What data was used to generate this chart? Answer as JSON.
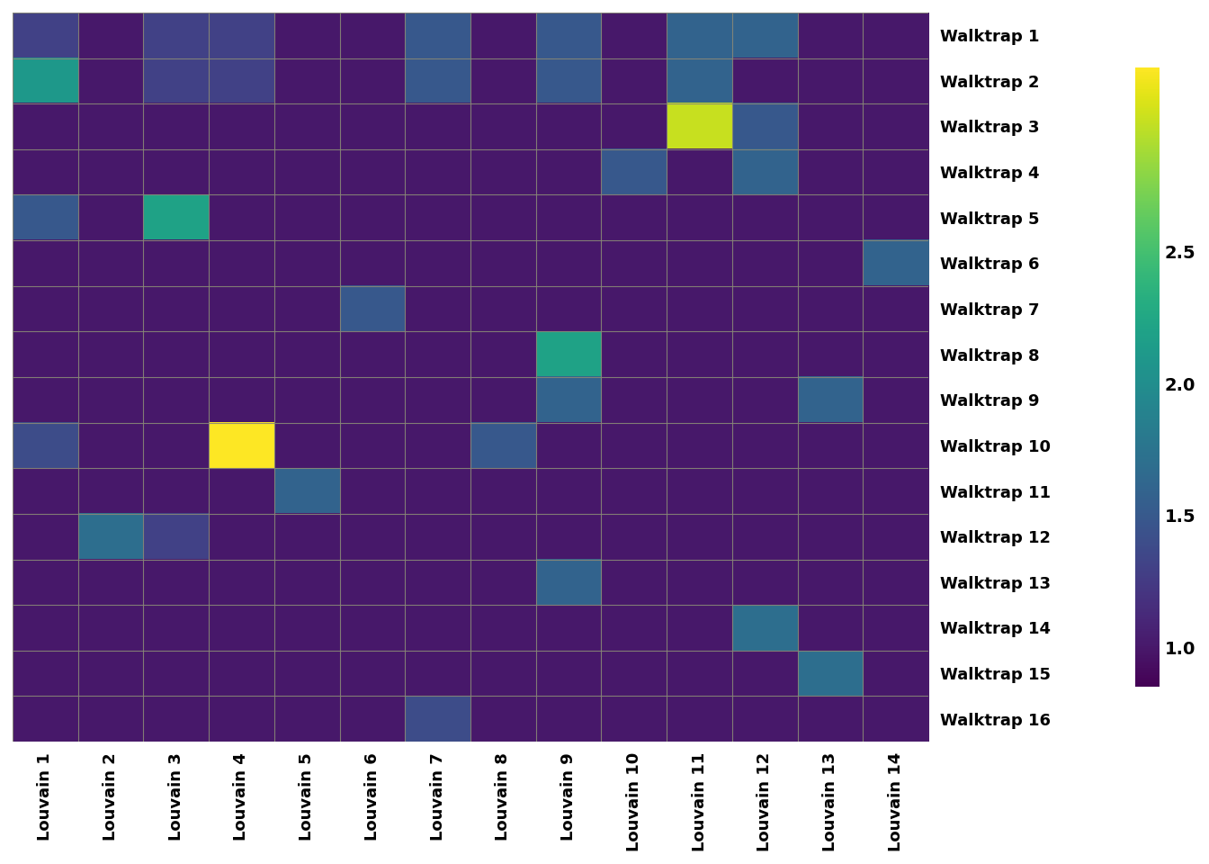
{
  "matrix": [
    [
      1.3,
      1.0,
      1.3,
      1.3,
      1.0,
      1.0,
      1.5,
      1.0,
      1.5,
      1.0,
      1.6,
      1.6,
      1.0,
      1.0
    ],
    [
      2.1,
      1.0,
      1.3,
      1.3,
      1.0,
      1.0,
      1.5,
      1.0,
      1.5,
      1.0,
      1.6,
      1.0,
      1.0,
      1.0
    ],
    [
      1.0,
      1.0,
      1.0,
      1.0,
      1.0,
      1.0,
      1.0,
      1.0,
      1.0,
      1.0,
      3.0,
      1.5,
      1.0,
      1.0
    ],
    [
      1.0,
      1.0,
      1.0,
      1.0,
      1.0,
      1.0,
      1.0,
      1.0,
      1.0,
      1.5,
      1.0,
      1.6,
      1.0,
      1.0
    ],
    [
      1.5,
      1.0,
      2.2,
      1.0,
      1.0,
      1.0,
      1.0,
      1.0,
      1.0,
      1.0,
      1.0,
      1.0,
      1.0,
      1.0
    ],
    [
      1.0,
      1.0,
      1.0,
      1.0,
      1.0,
      1.0,
      1.0,
      1.0,
      1.0,
      1.0,
      1.0,
      1.0,
      1.0,
      1.6
    ],
    [
      1.0,
      1.0,
      1.0,
      1.0,
      1.0,
      1.5,
      1.0,
      1.0,
      1.0,
      1.0,
      1.0,
      1.0,
      1.0,
      1.0
    ],
    [
      1.0,
      1.0,
      1.0,
      1.0,
      1.0,
      1.0,
      1.0,
      1.0,
      2.2,
      1.0,
      1.0,
      1.0,
      1.0,
      1.0
    ],
    [
      1.0,
      1.0,
      1.0,
      1.0,
      1.0,
      1.0,
      1.0,
      1.0,
      1.6,
      1.0,
      1.0,
      1.0,
      1.6,
      1.0
    ],
    [
      1.4,
      1.0,
      1.0,
      3.2,
      1.0,
      1.0,
      1.0,
      1.5,
      1.0,
      1.0,
      1.0,
      1.0,
      1.0,
      1.0
    ],
    [
      1.0,
      1.0,
      1.0,
      1.0,
      1.6,
      1.0,
      1.0,
      1.0,
      1.0,
      1.0,
      1.0,
      1.0,
      1.0,
      1.0
    ],
    [
      1.0,
      1.7,
      1.3,
      1.0,
      1.0,
      1.0,
      1.0,
      1.0,
      1.0,
      1.0,
      1.0,
      1.0,
      1.0,
      1.0
    ],
    [
      1.0,
      1.0,
      1.0,
      1.0,
      1.0,
      1.0,
      1.0,
      1.0,
      1.6,
      1.0,
      1.0,
      1.0,
      1.0,
      1.0
    ],
    [
      1.0,
      1.0,
      1.0,
      1.0,
      1.0,
      1.0,
      1.0,
      1.0,
      1.0,
      1.0,
      1.0,
      1.7,
      1.0,
      1.0
    ],
    [
      1.0,
      1.0,
      1.0,
      1.0,
      1.0,
      1.0,
      1.0,
      1.0,
      1.0,
      1.0,
      1.0,
      1.0,
      1.7,
      1.0
    ],
    [
      1.0,
      1.0,
      1.0,
      1.0,
      1.0,
      1.0,
      1.4,
      1.0,
      1.0,
      1.0,
      1.0,
      1.0,
      1.0,
      1.0
    ]
  ],
  "row_labels": [
    "Walktrap 1",
    "Walktrap 2",
    "Walktrap 3",
    "Walktrap 4",
    "Walktrap 5",
    "Walktrap 6",
    "Walktrap 7",
    "Walktrap 8",
    "Walktrap 9",
    "Walktrap 10",
    "Walktrap 11",
    "Walktrap 12",
    "Walktrap 13",
    "Walktrap 14",
    "Walktrap 15",
    "Walktrap 16"
  ],
  "col_labels": [
    "Louvain 1",
    "Louvain 2",
    "Louvain 3",
    "Louvain 4",
    "Louvain 5",
    "Louvain 6",
    "Louvain 7",
    "Louvain 8",
    "Louvain 9",
    "Louvain 10",
    "Louvain 11",
    "Louvain 12",
    "Louvain 13",
    "Louvain 14"
  ],
  "vmin": 0.85,
  "vmax": 3.2,
  "colorbar_ticks": [
    1.0,
    1.5,
    2.0,
    2.5
  ],
  "background_color": "#ffffff",
  "grid_color": "#888877",
  "cmap": "viridis",
  "label_fontsize": 13,
  "colorbar_fontsize": 14,
  "figwidth": 13.44,
  "figheight": 9.6,
  "dpi": 100
}
